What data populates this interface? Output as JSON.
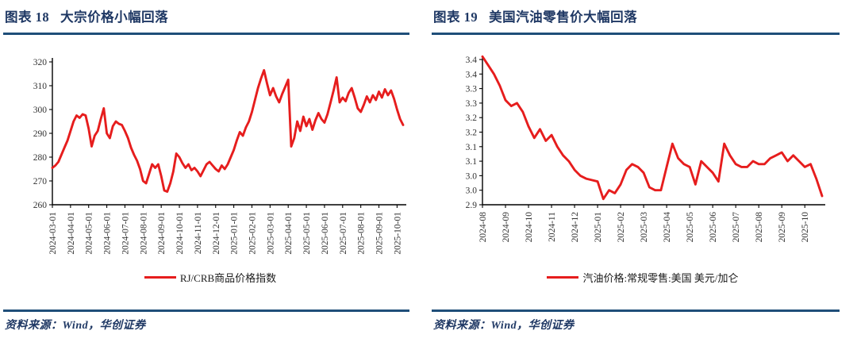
{
  "page": {
    "background": "#ffffff",
    "accent_navy": "#1f3864",
    "rule_navy": "#1f4e79"
  },
  "chart_data": [
    {
      "type": "line",
      "fig_label": "图表 18",
      "title": "大宗价格小幅回落",
      "source": "资料来源：Wind，华创证券",
      "legend_position": "bottom",
      "grid": false,
      "ylim": [
        260,
        320
      ],
      "y_ticks": [
        320,
        310,
        300,
        290,
        280,
        270,
        260
      ],
      "y_tick_labels": [
        "320",
        "310",
        "300",
        "290",
        "280",
        "270",
        "260"
      ],
      "x_tick_labels": [
        "2024-03-01",
        "2024-04-01",
        "2024-05-01",
        "2024-06-01",
        "2024-07-01",
        "2024-08-01",
        "2024-09-01",
        "2024-10-01",
        "2024-11-01",
        "2024-12-01",
        "2025-01-01",
        "2025-02-01",
        "2025-03-01",
        "2025-04-01",
        "2025-05-01",
        "2025-06-01",
        "2025-07-01",
        "2025-08-01",
        "2025-09-01",
        "2025-10-01"
      ],
      "x_tick_every": 6,
      "series": [
        {
          "name": "RJ/CRB商品价格指数",
          "color": "#e61d1d",
          "values": [
            275.5,
            276.5,
            278,
            281,
            284,
            287,
            291,
            295,
            297.5,
            296.5,
            298,
            297.5,
            292,
            284.5,
            289,
            291,
            296,
            300.5,
            290,
            288,
            293,
            295,
            294,
            293.5,
            291,
            288,
            284,
            281,
            278.5,
            275,
            270,
            269,
            273,
            277,
            275.5,
            277,
            272,
            266,
            265.5,
            269,
            274,
            281.5,
            280,
            277.5,
            275.5,
            277,
            274.5,
            275.5,
            274,
            272,
            274.5,
            277,
            278,
            276.5,
            275,
            274,
            276.5,
            275,
            277,
            280,
            283,
            287,
            290.5,
            289,
            292.5,
            295,
            299,
            304,
            309,
            313,
            316.5,
            311,
            306,
            309,
            305.5,
            303,
            306.5,
            309.5,
            312.5,
            284.5,
            288,
            295,
            291,
            297,
            293,
            296,
            291.5,
            295.5,
            298.5,
            296,
            294.5,
            298,
            303,
            308,
            313.5,
            303,
            305,
            303.5,
            307,
            309,
            305,
            300.5,
            299,
            302,
            305.5,
            303,
            306,
            304,
            307.5,
            305,
            308.5,
            306,
            308,
            304.5,
            300,
            296,
            293.5
          ]
        }
      ]
    },
    {
      "type": "line",
      "fig_label": "图表 19",
      "title": "美国汽油零售价大幅回落",
      "source": "资料来源：Wind，华创证券",
      "legend_position": "bottom",
      "grid": false,
      "ylim": [
        2.9,
        3.4
      ],
      "y_ticks": [
        3.4,
        3.35,
        3.3,
        3.25,
        3.2,
        3.15,
        3.1,
        3.05,
        3.0,
        2.95,
        2.9
      ],
      "y_tick_labels": [
        "3.4",
        "3.4",
        "3.3",
        "3.3",
        "3.2",
        "3.2",
        "3.1",
        "3.1",
        "3.0",
        "3.0",
        "2.9"
      ],
      "x_tick_labels": [
        "2024-08",
        "2024-09",
        "2024-10",
        "2024-11",
        "2024-12",
        "2025-01",
        "2025-02",
        "2025-03",
        "2025-04",
        "2025-05",
        "2025-06",
        "2025-07",
        "2025-08",
        "2025-09",
        "2025-10"
      ],
      "x_tick_every": 4,
      "series": [
        {
          "name": "汽油价格:常规零售:美国 美元/加仑",
          "color": "#e61d1d",
          "values": [
            3.41,
            3.38,
            3.35,
            3.31,
            3.26,
            3.24,
            3.25,
            3.22,
            3.17,
            3.13,
            3.16,
            3.12,
            3.14,
            3.1,
            3.07,
            3.05,
            3.02,
            3.0,
            2.99,
            2.985,
            2.98,
            2.92,
            2.95,
            2.94,
            2.97,
            3.02,
            3.04,
            3.03,
            3.01,
            2.96,
            2.95,
            2.95,
            3.03,
            3.11,
            3.06,
            3.04,
            3.03,
            2.97,
            3.05,
            3.03,
            3.01,
            2.98,
            3.11,
            3.07,
            3.04,
            3.03,
            3.03,
            3.05,
            3.04,
            3.04,
            3.06,
            3.07,
            3.08,
            3.05,
            3.07,
            3.05,
            3.03,
            3.04,
            2.99,
            2.93
          ]
        }
      ]
    }
  ]
}
